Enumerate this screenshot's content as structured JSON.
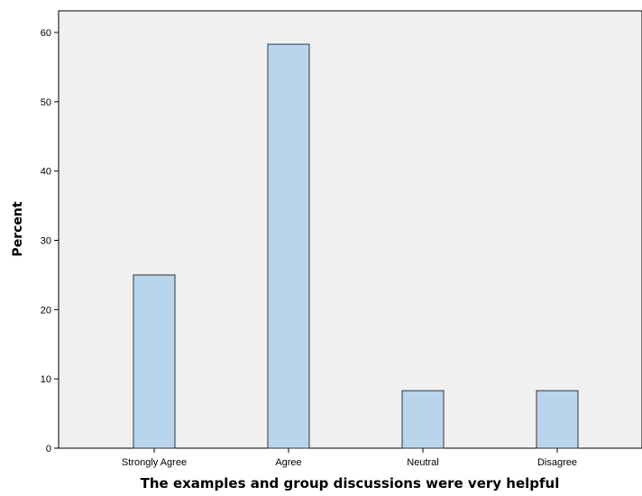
{
  "chart_data": {
    "type": "bar",
    "categories": [
      "Strongly Agree",
      "Agree",
      "Neutral",
      "Disagree"
    ],
    "values": [
      25.0,
      58.3,
      8.3,
      8.3
    ],
    "xlabel": "The examples and group discussions were very helpful",
    "ylabel": "Percent",
    "ylim": [
      0,
      60
    ],
    "yticks": [
      "0",
      "10",
      "20",
      "30",
      "40",
      "50",
      "60"
    ],
    "grid": false,
    "legend": "none",
    "colors": {
      "bar_fill": "#b9d5ec",
      "bar_stroke": "#333333",
      "plot_background": "#f0f0f0",
      "axis": "#000000"
    }
  }
}
